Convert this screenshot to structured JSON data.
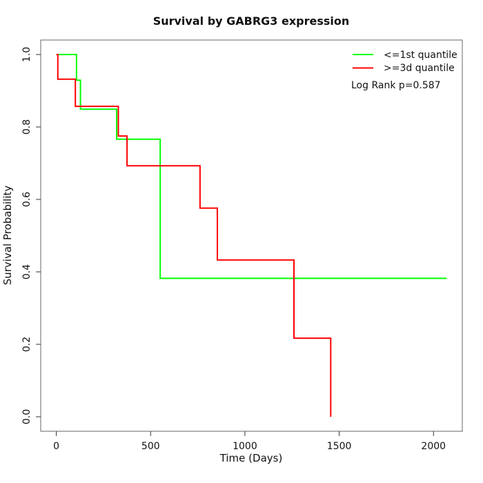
{
  "chart_data": {
    "type": "line",
    "subtype": "kaplan-meier-step",
    "title": "Survival by GABRG3 expression",
    "xlabel": "Time (Days)",
    "ylabel": "Survival Probability",
    "xlim": [
      0,
      2070
    ],
    "ylim": [
      0.0,
      1.0
    ],
    "x_ticks": [
      0,
      500,
      1000,
      1500,
      2000
    ],
    "y_ticks": [
      0.0,
      0.2,
      0.4,
      0.6,
      0.8,
      1.0
    ],
    "grid": false,
    "legend_position": "inside-top-right",
    "annotation": "Log Rank p=0.587",
    "frame_color": "#666666",
    "tick_color": "#333333",
    "background": "#ffffff",
    "series": [
      {
        "name": "<=1st quantile",
        "color": "#00ff00",
        "points": [
          [
            0,
            1.0
          ],
          [
            107,
            1.0
          ],
          [
            107,
            0.929
          ],
          [
            128,
            0.929
          ],
          [
            128,
            0.849
          ],
          [
            320,
            0.849
          ],
          [
            320,
            0.766
          ],
          [
            551,
            0.766
          ],
          [
            551,
            0.382
          ],
          [
            2070,
            0.382
          ]
        ]
      },
      {
        "name": ">=3d quantile",
        "color": "#ff0000",
        "points": [
          [
            0,
            1.0
          ],
          [
            8,
            1.0
          ],
          [
            8,
            0.932
          ],
          [
            101,
            0.932
          ],
          [
            101,
            0.857
          ],
          [
            329,
            0.857
          ],
          [
            329,
            0.775
          ],
          [
            375,
            0.775
          ],
          [
            375,
            0.693
          ],
          [
            762,
            0.693
          ],
          [
            762,
            0.576
          ],
          [
            854,
            0.576
          ],
          [
            854,
            0.433
          ],
          [
            1260,
            0.433
          ],
          [
            1260,
            0.217
          ],
          [
            1455,
            0.217
          ],
          [
            1455,
            0.0
          ]
        ]
      }
    ]
  }
}
